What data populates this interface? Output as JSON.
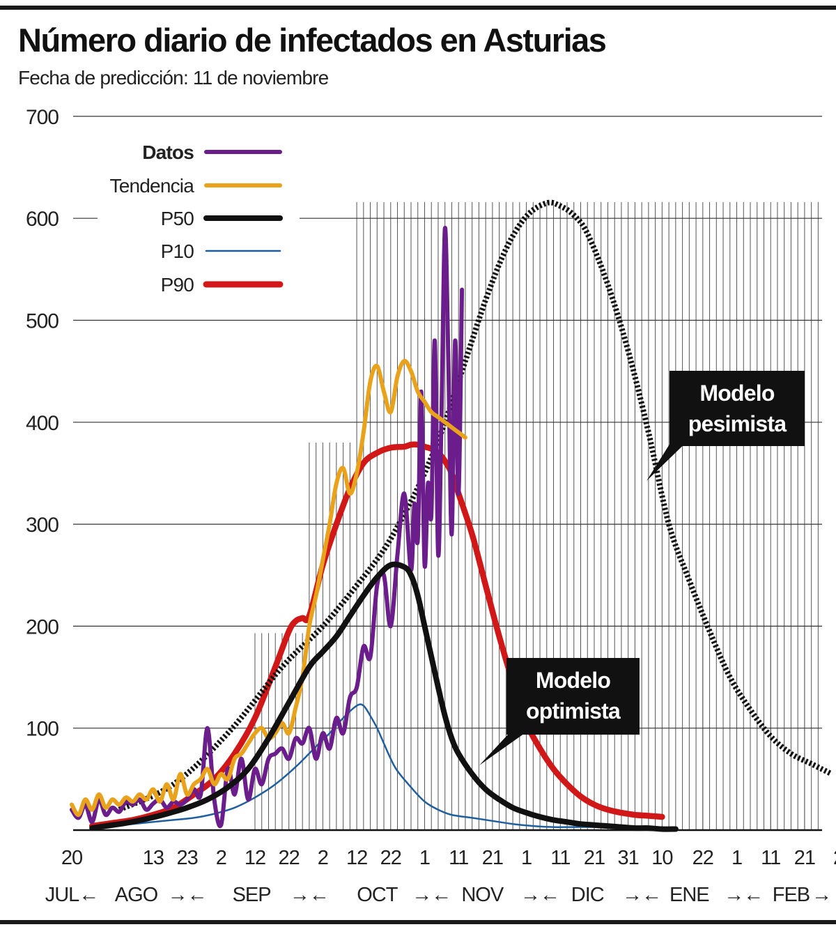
{
  "title": "Número diario de infectados en Asturias",
  "subtitle": "Fecha de predicción: 11 de noviembre",
  "chart_data": {
    "type": "line",
    "title": "Número diario de infectados en Asturias",
    "subtitle": "Fecha de predicción: 11 de noviembre",
    "ylim": [
      0,
      700
    ],
    "yticks": [
      100,
      200,
      300,
      400,
      500,
      600,
      700
    ],
    "xlim_days": [
      0,
      225
    ],
    "x_axis_note": "day 0 = 20 JUL",
    "xticks": [
      {
        "day": 0,
        "label": "20"
      },
      {
        "day": 24,
        "label": "13"
      },
      {
        "day": 34,
        "label": "23"
      },
      {
        "day": 44,
        "label": "2"
      },
      {
        "day": 54,
        "label": "12"
      },
      {
        "day": 64,
        "label": "22"
      },
      {
        "day": 74,
        "label": "2"
      },
      {
        "day": 84,
        "label": "12"
      },
      {
        "day": 94,
        "label": "22"
      },
      {
        "day": 104,
        "label": "1"
      },
      {
        "day": 114,
        "label": "11"
      },
      {
        "day": 124,
        "label": "21"
      },
      {
        "day": 134,
        "label": "1"
      },
      {
        "day": 144,
        "label": "11"
      },
      {
        "day": 154,
        "label": "21"
      },
      {
        "day": 164,
        "label": "31"
      },
      {
        "day": 174,
        "label": "10"
      },
      {
        "day": 186,
        "label": "22"
      },
      {
        "day": 196,
        "label": "1"
      },
      {
        "day": 206,
        "label": "11"
      },
      {
        "day": 216,
        "label": "21"
      },
      {
        "day": 226,
        "label": "2"
      }
    ],
    "months": [
      {
        "label": "JUL←",
        "day": 0
      },
      {
        "label": "AGO",
        "day": 19
      },
      {
        "label": "→←",
        "day": 34
      },
      {
        "label": "SEP",
        "day": 53
      },
      {
        "label": "→←",
        "day": 70
      },
      {
        "label": "OCT",
        "day": 90
      },
      {
        "label": "→←",
        "day": 106
      },
      {
        "label": "NOV",
        "day": 121
      },
      {
        "label": "→←",
        "day": 138
      },
      {
        "label": "DIC",
        "day": 152
      },
      {
        "label": "→←",
        "day": 168
      },
      {
        "label": "ENE",
        "day": 182
      },
      {
        "label": "→←",
        "day": 198
      },
      {
        "label": "FEB",
        "day": 212
      },
      {
        "label": "→ MAR",
        "day": 228
      }
    ],
    "legend": [
      {
        "label": "Datos",
        "color": "#6b1d8c",
        "bold": true
      },
      {
        "label": "Tendencia",
        "color": "#e8a21c"
      },
      {
        "label": "P50",
        "color": "#111111"
      },
      {
        "label": "P10",
        "color": "#1f5fa0"
      },
      {
        "label": "P90",
        "color": "#d01818"
      }
    ],
    "series": [
      {
        "name": "Datos",
        "color": "#6b1d8c",
        "x": [
          0,
          2,
          4,
          6,
          8,
          10,
          12,
          14,
          16,
          18,
          20,
          22,
          24,
          26,
          28,
          30,
          32,
          34,
          36,
          38,
          40,
          42,
          44,
          46,
          48,
          50,
          52,
          54,
          56,
          58,
          60,
          62,
          64,
          66,
          68,
          70,
          72,
          74,
          76,
          78,
          80,
          82,
          84,
          86,
          88,
          90,
          92,
          94,
          96,
          98,
          100,
          101,
          102,
          103,
          104,
          105,
          106,
          107,
          108,
          109,
          110,
          111,
          112,
          113,
          114,
          115
        ],
        "y": [
          20,
          12,
          25,
          8,
          30,
          15,
          22,
          18,
          28,
          25,
          30,
          20,
          26,
          30,
          22,
          28,
          25,
          30,
          40,
          35,
          100,
          30,
          5,
          60,
          35,
          70,
          30,
          60,
          45,
          70,
          75,
          80,
          70,
          90,
          85,
          100,
          70,
          95,
          80,
          110,
          95,
          130,
          140,
          180,
          170,
          240,
          250,
          200,
          270,
          330,
          255,
          320,
          285,
          430,
          260,
          340,
          310,
          480,
          270,
          410,
          590,
          460,
          290,
          480,
          330,
          530
        ]
      },
      {
        "name": "Tendencia",
        "color": "#e8a21c",
        "x": [
          0,
          2,
          4,
          6,
          8,
          10,
          12,
          14,
          16,
          18,
          20,
          22,
          24,
          26,
          28,
          30,
          32,
          34,
          36,
          38,
          40,
          42,
          44,
          46,
          48,
          50,
          52,
          54,
          56,
          58,
          60,
          62,
          64,
          66,
          68,
          70,
          72,
          74,
          76,
          78,
          80,
          82,
          84,
          86,
          88,
          90,
          92,
          94,
          96,
          98,
          100,
          102,
          104,
          106,
          108,
          110,
          112,
          114,
          116
        ],
        "y": [
          25,
          15,
          30,
          20,
          35,
          22,
          30,
          25,
          32,
          28,
          35,
          30,
          40,
          28,
          45,
          30,
          55,
          35,
          45,
          50,
          60,
          45,
          55,
          50,
          70,
          75,
          85,
          95,
          100,
          90,
          95,
          105,
          95,
          120,
          150,
          200,
          230,
          265,
          300,
          340,
          355,
          330,
          350,
          390,
          440,
          455,
          430,
          410,
          445,
          460,
          450,
          430,
          420,
          410,
          405,
          400,
          395,
          390,
          385
        ]
      },
      {
        "name": "P50",
        "color": "#111111",
        "x": [
          6,
          10,
          16,
          22,
          28,
          34,
          40,
          46,
          52,
          58,
          64,
          70,
          74,
          78,
          82,
          86,
          90,
          94,
          98,
          100,
          102,
          104,
          106,
          108,
          110,
          112,
          114,
          118,
          122,
          126,
          130,
          134,
          138,
          142,
          146,
          150,
          154,
          158,
          162,
          166,
          170,
          174,
          178
        ],
        "y": [
          2,
          4,
          7,
          11,
          16,
          22,
          30,
          42,
          60,
          90,
          125,
          160,
          175,
          190,
          210,
          230,
          248,
          260,
          258,
          250,
          230,
          200,
          170,
          140,
          112,
          90,
          75,
          55,
          40,
          30,
          22,
          17,
          13,
          10,
          8,
          6,
          5,
          4,
          3,
          2,
          2,
          1,
          1
        ],
        "note": "approximate shape"
      },
      {
        "name": "P10",
        "color": "#1f5fa0",
        "x": [
          6,
          12,
          18,
          24,
          30,
          36,
          42,
          48,
          54,
          60,
          66,
          72,
          76,
          80,
          84,
          86,
          88,
          90,
          92,
          94,
          96,
          100,
          104,
          108,
          112,
          118,
          124,
          130,
          136,
          142,
          148,
          154,
          160,
          166,
          172
        ],
        "y": [
          2,
          4,
          6,
          8,
          10,
          12,
          16,
          22,
          32,
          45,
          62,
          82,
          95,
          110,
          122,
          122,
          112,
          100,
          85,
          70,
          58,
          42,
          28,
          20,
          15,
          12,
          9,
          6,
          4,
          3,
          3,
          3,
          2,
          2,
          1
        ]
      },
      {
        "name": "P90",
        "color": "#d01818",
        "x": [
          6,
          12,
          18,
          24,
          30,
          36,
          42,
          48,
          54,
          60,
          64,
          66,
          68,
          70,
          74,
          78,
          82,
          86,
          90,
          94,
          98,
          100,
          102,
          104,
          106,
          108,
          110,
          112,
          114,
          118,
          122,
          126,
          130,
          134,
          138,
          142,
          146,
          150,
          154,
          158,
          162,
          166,
          170,
          174
        ],
        "y": [
          4,
          7,
          10,
          15,
          22,
          35,
          50,
          75,
          110,
          160,
          195,
          205,
          208,
          210,
          260,
          300,
          335,
          360,
          370,
          375,
          376,
          378,
          378,
          376,
          374,
          370,
          362,
          350,
          330,
          290,
          240,
          190,
          145,
          105,
          80,
          60,
          45,
          33,
          25,
          20,
          17,
          15,
          14,
          13
        ]
      },
      {
        "name": "Modelo pesimista",
        "color": "#111111",
        "dashed": true,
        "x": [
          14,
          30,
          46,
          62,
          74,
          84,
          92,
          98,
          104,
          110,
          116,
          122,
          128,
          134,
          140,
          144,
          148,
          152,
          158,
          164,
          170,
          176,
          182,
          188,
          194,
          200,
          206,
          212,
          218,
          224
        ],
        "y": [
          20,
          45,
          95,
          160,
          200,
          240,
          275,
          310,
          350,
          400,
          460,
          520,
          570,
          602,
          615,
          612,
          603,
          585,
          535,
          470,
          390,
          300,
          245,
          195,
          150,
          118,
          92,
          75,
          65,
          55
        ]
      }
    ],
    "annotations": [
      {
        "text_lines": [
          "Modelo",
          "optimista"
        ],
        "target_series": "P50"
      },
      {
        "text_lines": [
          "Modelo",
          "pesimista"
        ],
        "target_series": "Modelo pesimista"
      }
    ]
  }
}
